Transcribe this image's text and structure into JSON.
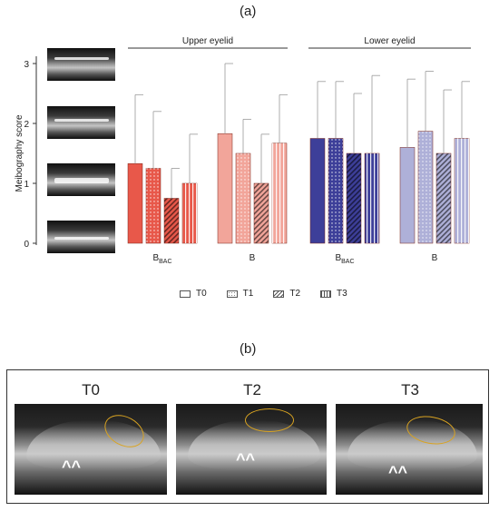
{
  "panel_a_label": "(a)",
  "panel_b_label": "(b)",
  "chart_data": {
    "type": "bar",
    "ylabel": "Meibography score",
    "ylim": [
      0,
      3
    ],
    "yticks": [
      "0",
      "1",
      "2",
      "3"
    ],
    "groups": [
      {
        "label_main": "B",
        "label_sub": "BAC",
        "section": "Upper eyelid",
        "color": "#e8584a",
        "values": [
          1.33,
          1.25,
          0.75,
          1.0
        ],
        "errors": [
          2.48,
          2.2,
          1.25,
          1.82
        ]
      },
      {
        "label_main": "B",
        "label_sub": "",
        "section": "Upper eyelid",
        "color": "#f2a59a",
        "values": [
          1.83,
          1.5,
          1.0,
          1.67
        ],
        "errors": [
          3.0,
          2.07,
          1.82,
          2.48
        ]
      },
      {
        "label_main": "B",
        "label_sub": "BAC",
        "section": "Lower eyelid",
        "color": "#3d3f99",
        "values": [
          1.75,
          1.75,
          1.5,
          1.5
        ],
        "errors": [
          2.7,
          2.7,
          2.5,
          2.8
        ]
      },
      {
        "label_main": "B",
        "label_sub": "",
        "section": "Lower eyelid",
        "color": "#aeb0d8",
        "values": [
          1.6,
          1.87,
          1.5,
          1.75
        ],
        "errors": [
          2.74,
          2.87,
          2.56,
          2.7
        ]
      }
    ],
    "sections": [
      "Upper eyelid",
      "Lower eyelid"
    ],
    "legend": [
      "T0",
      "T1",
      "T2",
      "T3"
    ]
  },
  "photos_b": {
    "titles": [
      "T0",
      "T2",
      "T3"
    ]
  }
}
